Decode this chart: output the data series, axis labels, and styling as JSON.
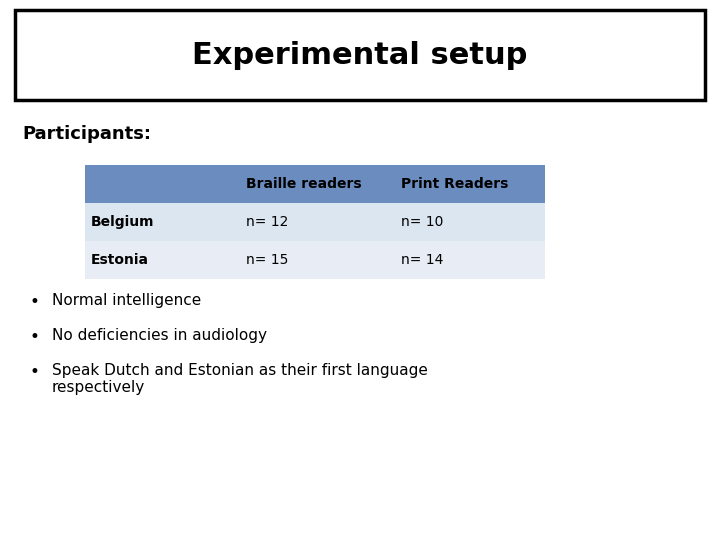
{
  "title": "Experimental setup",
  "participants_label": "Participants:",
  "table_headers": [
    "",
    "Braille readers",
    "Print Readers"
  ],
  "table_rows": [
    [
      "Belgium",
      "n= 12",
      "n= 10"
    ],
    [
      "Estonia",
      "n= 15",
      "n= 14"
    ]
  ],
  "header_bg_color": "#6b8cbe",
  "row1_bg_color": "#dce6f1",
  "row2_bg_color": "#e8edf5",
  "bullet_points": [
    "Normal intelligence",
    "No deficiencies in audiology",
    "Speak Dutch and Estonian as their first language\nrespectively"
  ],
  "bg_color": "#ffffff",
  "text_color": "#000000",
  "title_fontsize": 22,
  "participants_fontsize": 13,
  "table_fontsize": 10,
  "bullet_fontsize": 11
}
